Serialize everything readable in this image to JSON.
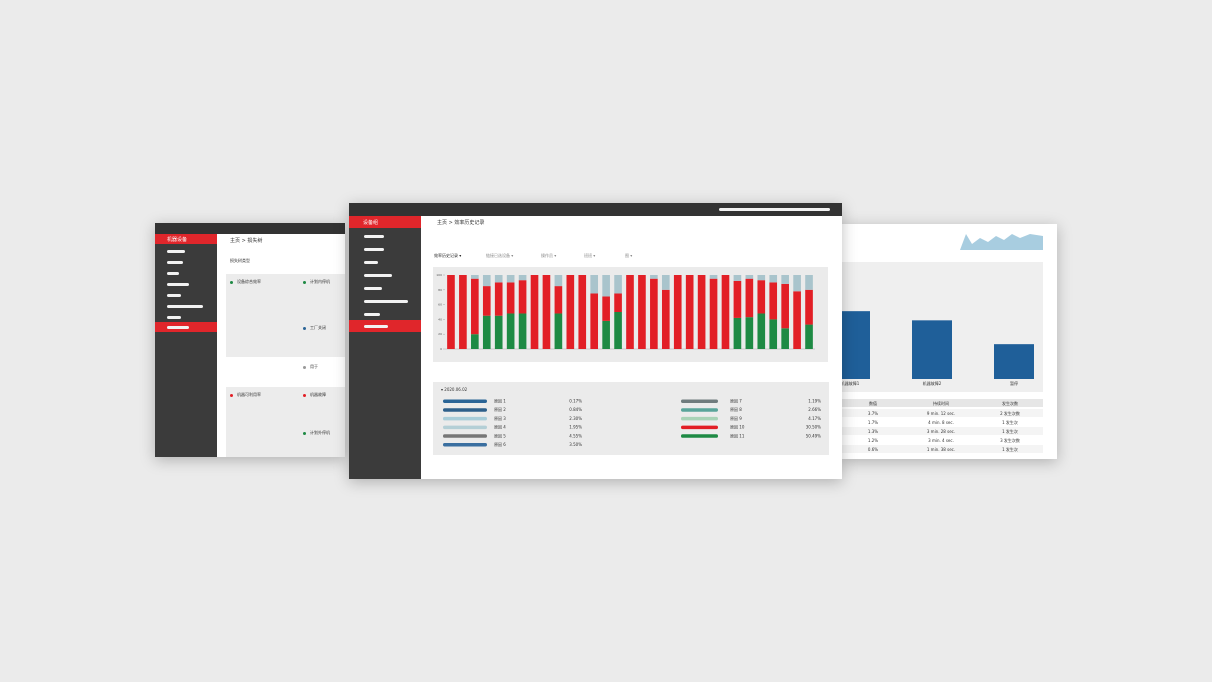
{
  "left_window": {
    "sidebar_active": "机器设备",
    "breadcrumb": "主页 > 损失树",
    "section_label": "损失树类型",
    "nodes_col1": [
      "设备综合效率",
      "机器可利用率"
    ],
    "nodes_col2": [
      "计划内停机",
      "工厂关闭",
      "用于",
      "机器故障",
      "计划外停机"
    ]
  },
  "center_window": {
    "sidebar_active": "设备组",
    "breadcrumb": "主页 > 效率历史记录",
    "filters": [
      "效率历史记录 ▾",
      "链接已选设备 ▾",
      "操作员 ▾",
      "班班 ▾",
      "图 ▾"
    ],
    "chart": {
      "ylim": [
        0,
        100
      ],
      "yticks": [
        0,
        20,
        40,
        60,
        80,
        100
      ],
      "colors": [
        "#1e8a44",
        "#e21f26",
        "#a9c4cc"
      ],
      "bars": [
        [
          0,
          100,
          0
        ],
        [
          0,
          100,
          0
        ],
        [
          20,
          75,
          5
        ],
        [
          45,
          40,
          15
        ],
        [
          45,
          45,
          10
        ],
        [
          48,
          42,
          10
        ],
        [
          48,
          45,
          7
        ],
        [
          0,
          100,
          0
        ],
        [
          0,
          100,
          0
        ],
        [
          48,
          37,
          15
        ],
        [
          0,
          100,
          0
        ],
        [
          0,
          100,
          0
        ],
        [
          0,
          75,
          25
        ],
        [
          38,
          33,
          29
        ],
        [
          50,
          25,
          25
        ],
        [
          0,
          100,
          0
        ],
        [
          0,
          100,
          0
        ],
        [
          0,
          95,
          5
        ],
        [
          0,
          80,
          20
        ],
        [
          0,
          100,
          0
        ],
        [
          0,
          100,
          0
        ],
        [
          0,
          100,
          0
        ],
        [
          0,
          95,
          5
        ],
        [
          0,
          100,
          0
        ],
        [
          42,
          50,
          8
        ],
        [
          43,
          52,
          5
        ],
        [
          48,
          45,
          7
        ],
        [
          40,
          50,
          10
        ],
        [
          28,
          60,
          12
        ],
        [
          0,
          78,
          22
        ],
        [
          33,
          47,
          20
        ]
      ]
    },
    "legend_date": "▾ 2020.06.02",
    "legend": [
      {
        "name": "原因 1",
        "value": "0.17%",
        "color": "#2a6496"
      },
      {
        "name": "原因 2",
        "value": "0.84%",
        "color": "#2e5f8a"
      },
      {
        "name": "原因 3",
        "value": "2.30%",
        "color": "#a9cdd9"
      },
      {
        "name": "原因 4",
        "value": "1.95%",
        "color": "#b4cfd6"
      },
      {
        "name": "原因 5",
        "value": "4.55%",
        "color": "#777777"
      },
      {
        "name": "原因 6",
        "value": "3.50%",
        "color": "#3a6fa0"
      },
      {
        "name": "原因 7",
        "value": "1.19%",
        "color": "#6f7b7d"
      },
      {
        "name": "原因 8",
        "value": "2.66%",
        "color": "#5aa49a"
      },
      {
        "name": "原因 9",
        "value": "4.17%",
        "color": "#a9d3b7"
      },
      {
        "name": "原因 10",
        "value": "30.50%",
        "color": "#e21f26"
      },
      {
        "name": "原因 11",
        "value": "50.49%",
        "color": "#1e8a44"
      }
    ]
  },
  "right_window": {
    "bar_chart": {
      "categories": [
        "机器故障1",
        "机器故障2",
        "暂停"
      ],
      "values": [
        3.7,
        3.2,
        1.9
      ],
      "ylim": [
        0,
        6
      ],
      "color": "#1f5f99"
    },
    "table": {
      "header": [
        "数值",
        "持续时间",
        "发生次数"
      ],
      "rows": [
        [
          "3.7%",
          "9 min. 12 sec.",
          "2 发生次数"
        ],
        [
          "1.7%",
          "4 min. 8 sec.",
          "1 发生次"
        ],
        [
          "1.3%",
          "3 min. 28 sec.",
          "1 发生次"
        ],
        [
          "1.2%",
          "3 min. 4 sec.",
          "3 发生次数"
        ],
        [
          "0.6%",
          "1 min. 38 sec.",
          "1 发生次"
        ]
      ]
    }
  }
}
